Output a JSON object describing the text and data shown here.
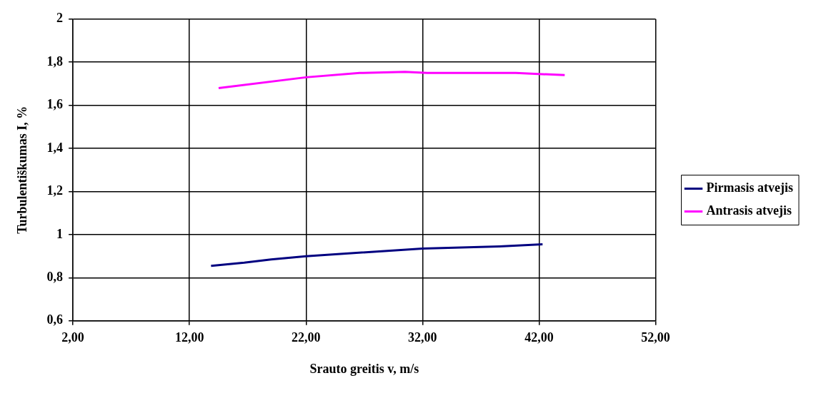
{
  "chart_data": {
    "type": "line",
    "xlabel": "Srauto greitis v, m/s",
    "ylabel": "Turbulentiškumas I, %",
    "xlim": [
      2,
      52
    ],
    "xticks": [
      {
        "value": 2,
        "label": "2,00"
      },
      {
        "value": 12,
        "label": "12,00"
      },
      {
        "value": 22,
        "label": "22,00"
      },
      {
        "value": 32,
        "label": "32,00"
      },
      {
        "value": 42,
        "label": "42,00"
      },
      {
        "value": 52,
        "label": "52,00"
      }
    ],
    "ylim": [
      0.6,
      2
    ],
    "yticks": [
      {
        "value": 0.6,
        "label": "0,6"
      },
      {
        "value": 0.8,
        "label": "0,8"
      },
      {
        "value": 1,
        "label": "1"
      },
      {
        "value": 1.2,
        "label": "1,2"
      },
      {
        "value": 1.4,
        "label": "1,4"
      },
      {
        "value": 1.6,
        "label": "1,6"
      },
      {
        "value": 1.8,
        "label": "1,8"
      },
      {
        "value": 2,
        "label": "2"
      }
    ],
    "grid": true,
    "legend": "right",
    "marker": "none",
    "line_style": "solid",
    "series": [
      {
        "name": "Pirmasis atvejis",
        "color": "#000080",
        "x": [
          13.85,
          16.7,
          19,
          22,
          32,
          38.6,
          42.3
        ],
        "values": [
          0.855,
          0.87,
          0.885,
          0.9,
          0.935,
          0.945,
          0.955
        ]
      },
      {
        "name": "Antrasis atvejis",
        "color": "#ff00ff",
        "x": [
          14.5,
          22,
          26.6,
          30.5,
          32.4,
          40,
          44.2
        ],
        "values": [
          1.68,
          1.73,
          1.75,
          1.755,
          1.75,
          1.75,
          1.74
        ]
      }
    ]
  }
}
